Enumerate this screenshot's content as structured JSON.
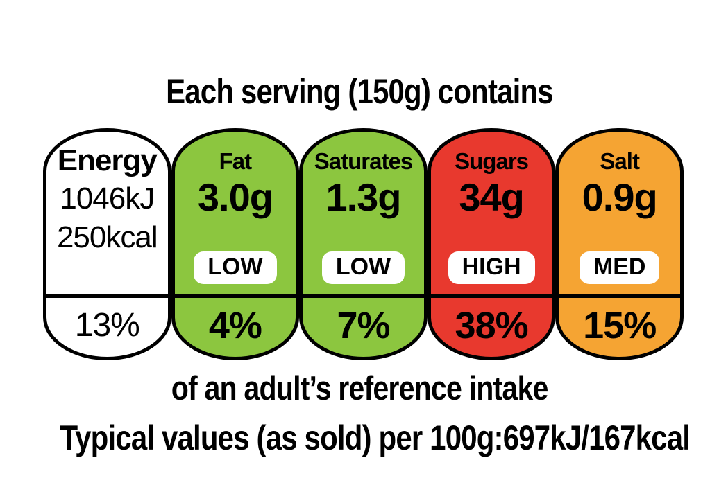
{
  "header": {
    "title": "Each serving (150g) contains"
  },
  "panels": [
    {
      "label": "Energy",
      "value_kj": "1046kJ",
      "value_kcal": "250kcal",
      "percent": "13%",
      "bg": "#FFFFFF"
    },
    {
      "label": "Fat",
      "value": "3.0g",
      "level": "LOW",
      "percent": "4%",
      "bg": "#8CC63F"
    },
    {
      "label": "Saturates",
      "value": "1.3g",
      "level": "LOW",
      "percent": "7%",
      "bg": "#8CC63F"
    },
    {
      "label": "Sugars",
      "value": "34g",
      "level": "HIGH",
      "percent": "38%",
      "bg": "#E8392E"
    },
    {
      "label": "Salt",
      "value": "0.9g",
      "level": "MED",
      "percent": "15%",
      "bg": "#F5A433"
    }
  ],
  "footer": {
    "reference_line": "of an adult’s reference intake",
    "typical_values_line": "Typical values (as sold) per 100g:697kJ/167kcal"
  },
  "colors": {
    "low_green": "#8CC63F",
    "high_red": "#E8392E",
    "medium_orange": "#F5A433",
    "badge_bg": "#FFFFFF",
    "outline": "#000000",
    "text": "#000000",
    "page_bg": "#FFFFFF"
  }
}
